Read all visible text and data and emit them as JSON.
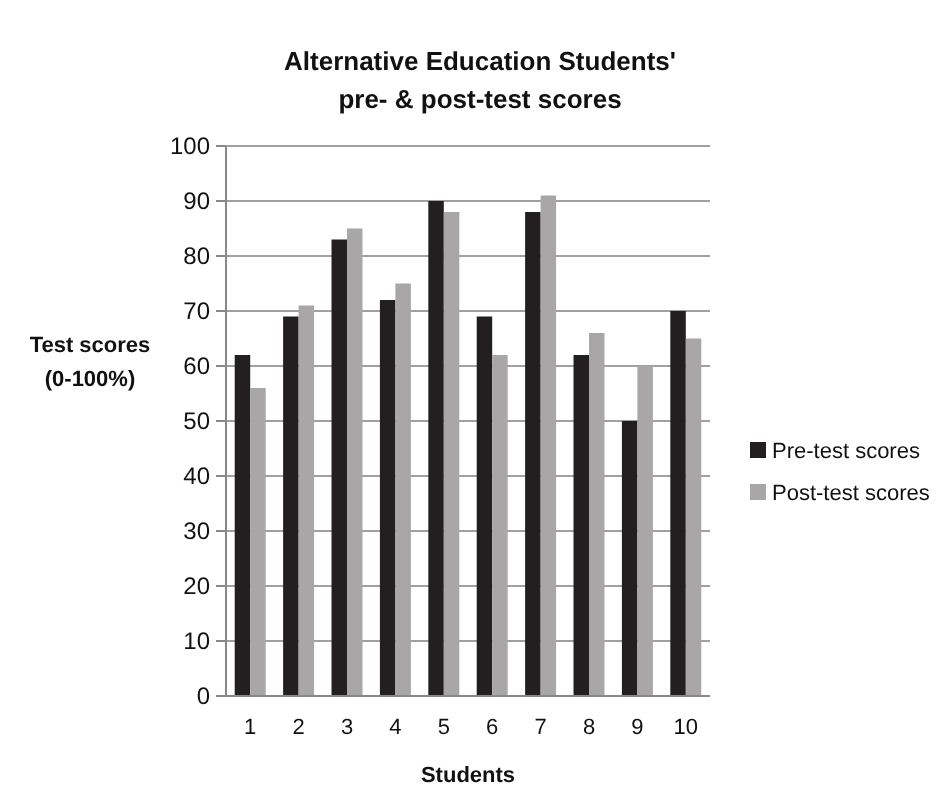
{
  "chart_data": {
    "type": "bar",
    "title": "Alternative Education Students'\npre- & post-test scores",
    "xlabel": "Students",
    "ylabel": "Test scores\n(0-100%)",
    "categories": [
      "1",
      "2",
      "3",
      "4",
      "5",
      "6",
      "7",
      "8",
      "9",
      "10"
    ],
    "series": [
      {
        "name": "Pre-test scores",
        "color": "#231f20",
        "values": [
          62,
          69,
          83,
          72,
          90,
          69,
          88,
          62,
          50,
          70
        ]
      },
      {
        "name": "Post-test scores",
        "color": "#a8a6a6",
        "values": [
          56,
          71,
          85,
          75,
          88,
          62,
          91,
          66,
          60,
          65
        ]
      }
    ],
    "ylim": [
      0,
      100
    ],
    "yticks": [
      0,
      10,
      20,
      30,
      40,
      50,
      60,
      70,
      80,
      90,
      100
    ],
    "grid": "y",
    "legend": "right"
  }
}
